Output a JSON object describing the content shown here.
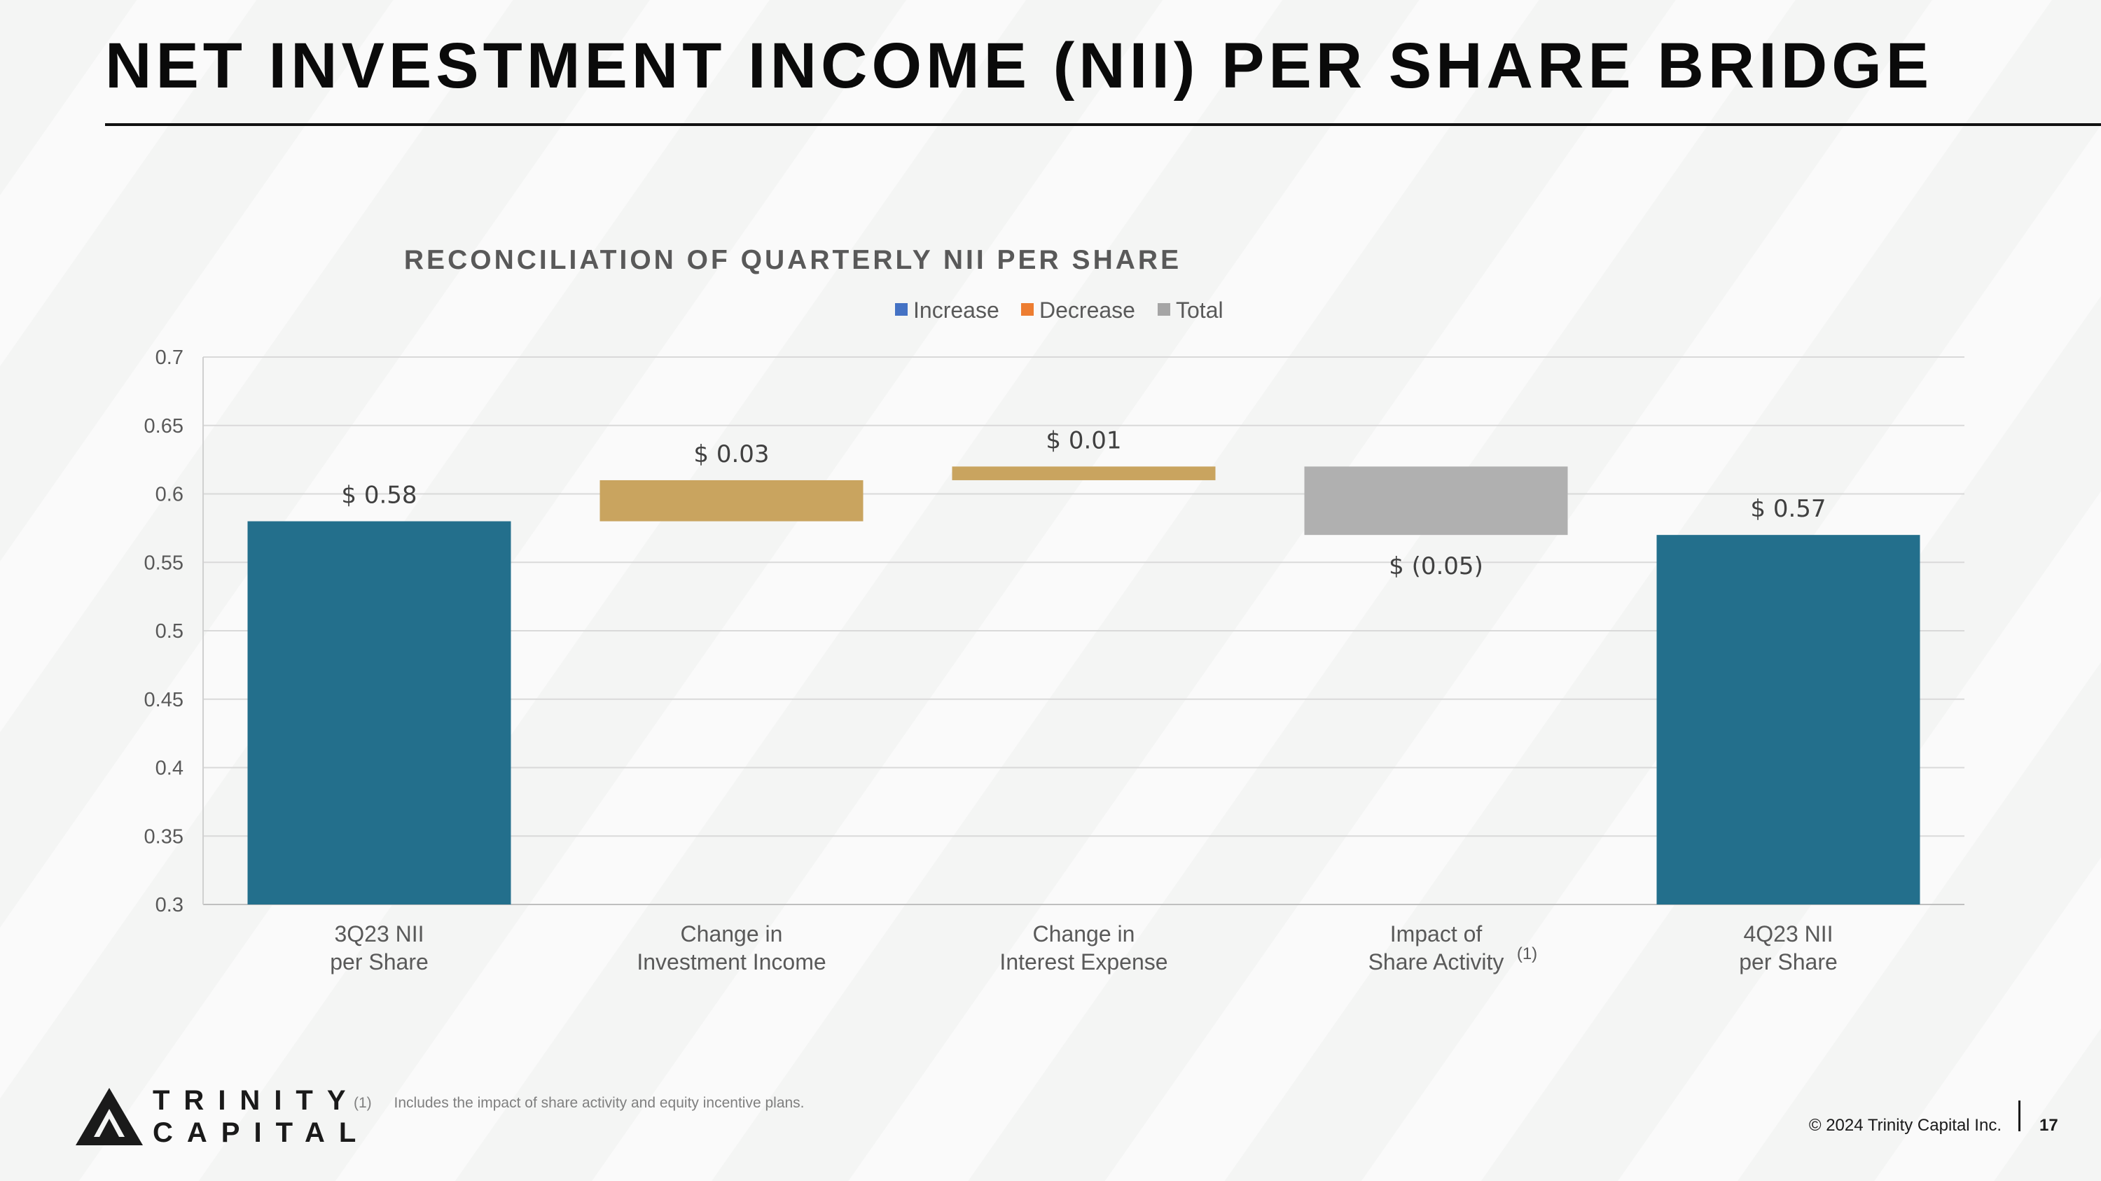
{
  "page": {
    "title": "NET INVESTMENT INCOME (NII) PER SHARE BRIDGE",
    "footnote_marker": "(1)",
    "footnote_text": "Includes the impact of share activity and equity incentive plans.",
    "copyright": "© 2024 Trinity Capital Inc.",
    "page_number": "17",
    "logo": {
      "line1": "TRINITY",
      "line2": "CAPITAL"
    }
  },
  "colors": {
    "total_bar": "#236f8c",
    "increase_bar": "#c9a45f",
    "decrease_bar": "#b0b0b0",
    "legend_increase": "#4472c4",
    "legend_decrease": "#ed7d31",
    "legend_total": "#a5a5a5",
    "grid": "#d9d9d9"
  },
  "chart_data": {
    "type": "bar",
    "subtype": "waterfall",
    "title": "RECONCILIATION OF QUARTERLY NII PER SHARE",
    "legend": [
      "Increase",
      "Decrease",
      "Total"
    ],
    "legend_position": "top-center",
    "ylim": [
      0.3,
      0.7
    ],
    "yticks": [
      "0.3",
      "0.35",
      "0.4",
      "0.45",
      "0.5",
      "0.55",
      "0.6",
      "0.65",
      "0.7"
    ],
    "grid": true,
    "categories": [
      [
        "3Q23 NII",
        "per Share"
      ],
      [
        "Change in",
        "Investment Income"
      ],
      [
        "Change in",
        "Interest Expense"
      ],
      [
        "Impact of",
        "Share Activity"
      ],
      [
        "4Q23 NII",
        "per Share"
      ]
    ],
    "category_footnote": {
      "index": 3,
      "marker": "(1)"
    },
    "bars": [
      {
        "kind": "total",
        "start": 0.3,
        "end": 0.58,
        "label": "$ 0.58",
        "label_pos": "above"
      },
      {
        "kind": "increase",
        "start": 0.58,
        "end": 0.61,
        "label": "$ 0.03",
        "label_pos": "above"
      },
      {
        "kind": "increase",
        "start": 0.61,
        "end": 0.62,
        "label": "$ 0.01",
        "label_pos": "above"
      },
      {
        "kind": "decrease",
        "start": 0.62,
        "end": 0.57,
        "label": "$ (0.05)",
        "label_pos": "below"
      },
      {
        "kind": "total",
        "start": 0.3,
        "end": 0.57,
        "label": "$ 0.57",
        "label_pos": "above"
      }
    ]
  }
}
